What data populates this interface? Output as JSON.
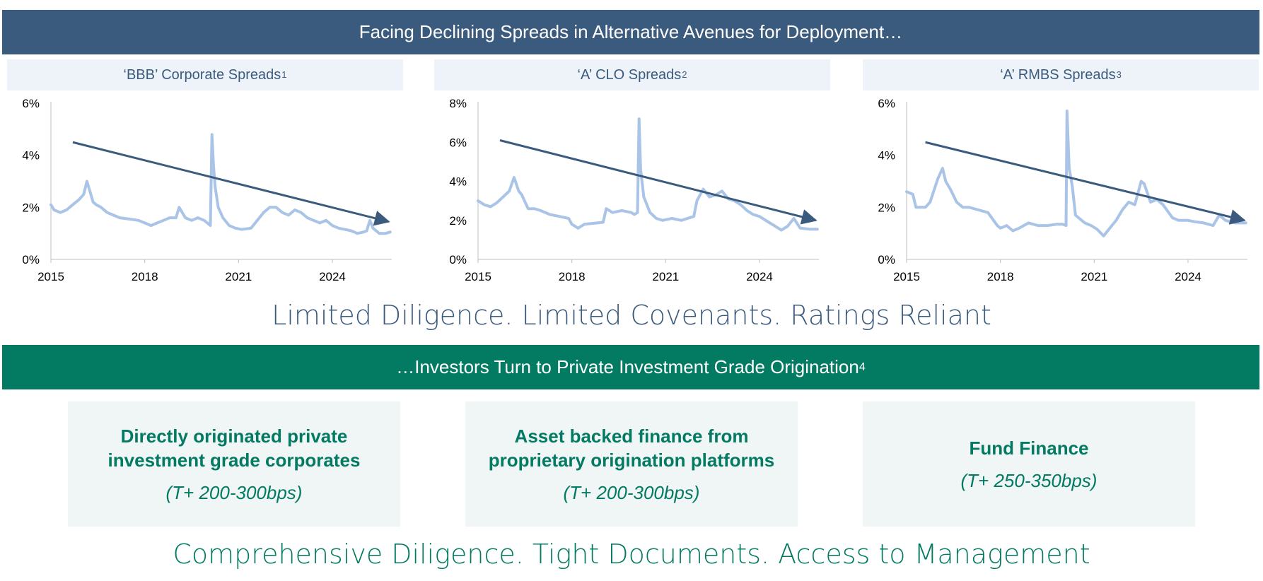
{
  "top_banner": "Facing Declining Spreads in Alternative Avenues for Deployment…",
  "tagline_top": "Limited Diligence. Limited Covenants. Ratings Reliant",
  "mid_banner": {
    "text": "…Investors Turn to Private Investment Grade Origination",
    "footnote": "4"
  },
  "cards": [
    {
      "heading": "Directly originated private investment grade corporates",
      "spread": "(T+ 200-300bps)"
    },
    {
      "heading": "Asset backed finance from proprietary origination platforms",
      "spread": "(T+ 200-300bps)"
    },
    {
      "heading": "Fund Finance",
      "spread": "(T+ 250-350bps)"
    }
  ],
  "tagline_bottom": "Comprehensive Diligence. Tight Documents. Access to Management",
  "colors": {
    "navy": "#3b5b7e",
    "green": "#037a62",
    "series": "#a9c4e6",
    "title_bg": "#eef3fa",
    "card_bg": "#f0f5f5"
  },
  "chart_data": [
    {
      "type": "line",
      "title": "‘BBB’ Corporate Spreads",
      "footnote": "1",
      "xlabel": "",
      "ylabel": "",
      "xlim": [
        2015,
        2025.9
      ],
      "ylim": [
        0,
        6
      ],
      "xticks": [
        2015,
        2018,
        2021,
        2024
      ],
      "xtick_labels": [
        "2015",
        "2018",
        "2021",
        "2024"
      ],
      "yticks": [
        0,
        2,
        4,
        6
      ],
      "ytick_labels": [
        "0%",
        "2%",
        "4%",
        "6%"
      ],
      "trend": {
        "from": [
          2015.7,
          4.5
        ],
        "to": [
          2025.8,
          1.45
        ]
      },
      "series": [
        {
          "name": "‘BBB’ Corporate Spread",
          "x": [
            2015.0,
            2015.1,
            2015.3,
            2015.5,
            2015.7,
            2015.9,
            2016.05,
            2016.15,
            2016.25,
            2016.35,
            2016.45,
            2016.6,
            2016.8,
            2017.0,
            2017.2,
            2017.5,
            2017.8,
            2018.0,
            2018.2,
            2018.4,
            2018.6,
            2018.8,
            2019.0,
            2019.1,
            2019.3,
            2019.5,
            2019.7,
            2019.9,
            2020.0,
            2020.1,
            2020.15,
            2020.2,
            2020.25,
            2020.35,
            2020.5,
            2020.7,
            2020.9,
            2021.1,
            2021.4,
            2021.6,
            2021.8,
            2022.0,
            2022.2,
            2022.4,
            2022.6,
            2022.8,
            2023.0,
            2023.2,
            2023.4,
            2023.6,
            2023.8,
            2024.0,
            2024.2,
            2024.4,
            2024.6,
            2024.8,
            2025.0,
            2025.1,
            2025.2,
            2025.3,
            2025.5,
            2025.7,
            2025.85
          ],
          "values": [
            2.1,
            1.9,
            1.8,
            1.9,
            2.1,
            2.3,
            2.5,
            3.0,
            2.6,
            2.2,
            2.1,
            2.0,
            1.8,
            1.7,
            1.6,
            1.55,
            1.5,
            1.4,
            1.3,
            1.4,
            1.5,
            1.6,
            1.6,
            2.0,
            1.6,
            1.5,
            1.6,
            1.5,
            1.4,
            1.3,
            4.8,
            3.6,
            2.8,
            2.0,
            1.6,
            1.3,
            1.2,
            1.15,
            1.2,
            1.5,
            1.8,
            2.0,
            2.0,
            1.8,
            1.7,
            1.9,
            1.8,
            1.6,
            1.5,
            1.4,
            1.5,
            1.3,
            1.2,
            1.15,
            1.1,
            1.0,
            1.05,
            1.1,
            1.5,
            1.2,
            1.0,
            1.0,
            1.05
          ]
        }
      ]
    },
    {
      "type": "line",
      "title": "‘A’ CLO Spreads",
      "footnote": "2",
      "xlabel": "",
      "ylabel": "",
      "xlim": [
        2015,
        2025.9
      ],
      "ylim": [
        0,
        8
      ],
      "xticks": [
        2015,
        2018,
        2021,
        2024
      ],
      "xtick_labels": [
        "2015",
        "2018",
        "2021",
        "2024"
      ],
      "yticks": [
        0,
        2,
        4,
        6,
        8
      ],
      "ytick_labels": [
        "0%",
        "2%",
        "4%",
        "6%",
        "8%"
      ],
      "trend": {
        "from": [
          2015.7,
          6.1
        ],
        "to": [
          2025.8,
          2.0
        ]
      },
      "series": [
        {
          "name": "‘A’ CLO Spread",
          "x": [
            2015.0,
            2015.2,
            2015.4,
            2015.6,
            2015.8,
            2016.0,
            2016.15,
            2016.3,
            2016.4,
            2016.6,
            2016.8,
            2017.0,
            2017.3,
            2017.6,
            2017.9,
            2018.0,
            2018.2,
            2018.4,
            2018.7,
            2019.0,
            2019.1,
            2019.3,
            2019.6,
            2019.9,
            2020.0,
            2020.1,
            2020.15,
            2020.2,
            2020.3,
            2020.5,
            2020.7,
            2020.9,
            2021.2,
            2021.5,
            2021.9,
            2022.0,
            2022.2,
            2022.4,
            2022.6,
            2022.8,
            2023.0,
            2023.2,
            2023.4,
            2023.6,
            2023.8,
            2024.0,
            2024.3,
            2024.5,
            2024.7,
            2024.9,
            2025.1,
            2025.3,
            2025.6,
            2025.85
          ],
          "values": [
            3.0,
            2.8,
            2.7,
            2.9,
            3.2,
            3.5,
            4.2,
            3.5,
            3.3,
            2.6,
            2.6,
            2.5,
            2.3,
            2.2,
            2.1,
            1.8,
            1.6,
            1.8,
            1.85,
            1.9,
            2.6,
            2.4,
            2.5,
            2.4,
            2.3,
            2.4,
            7.2,
            4.6,
            3.2,
            2.4,
            2.1,
            2.0,
            2.1,
            2.0,
            2.2,
            3.0,
            3.6,
            3.2,
            3.3,
            3.5,
            3.1,
            3.0,
            2.8,
            2.5,
            2.3,
            2.2,
            1.9,
            1.7,
            1.5,
            1.7,
            2.1,
            1.6,
            1.55,
            1.55
          ]
        }
      ]
    },
    {
      "type": "line",
      "title": "‘A’ RMBS Spreads",
      "footnote": "3",
      "xlabel": "",
      "ylabel": "",
      "xlim": [
        2015,
        2025.9
      ],
      "ylim": [
        0,
        6
      ],
      "xticks": [
        2015,
        2018,
        2021,
        2024
      ],
      "xtick_labels": [
        "2015",
        "2018",
        "2021",
        "2024"
      ],
      "yticks": [
        0,
        2,
        4,
        6
      ],
      "ytick_labels": [
        "0%",
        "2%",
        "4%",
        "6%"
      ],
      "trend": {
        "from": [
          2015.6,
          4.5
        ],
        "to": [
          2025.8,
          1.5
        ]
      },
      "series": [
        {
          "name": "‘A’ RMBS Spread",
          "x": [
            2015.0,
            2015.2,
            2015.3,
            2015.6,
            2015.75,
            2016.0,
            2016.15,
            2016.25,
            2016.4,
            2016.6,
            2016.8,
            2017.0,
            2017.3,
            2017.6,
            2017.9,
            2018.0,
            2018.2,
            2018.4,
            2018.6,
            2018.9,
            2019.2,
            2019.5,
            2019.8,
            2020.0,
            2020.1,
            2020.13,
            2020.2,
            2020.3,
            2020.4,
            2020.5,
            2020.7,
            2020.9,
            2021.1,
            2021.3,
            2021.5,
            2021.7,
            2021.9,
            2022.1,
            2022.3,
            2022.5,
            2022.6,
            2022.8,
            2023.0,
            2023.2,
            2023.5,
            2023.7,
            2024.0,
            2024.2,
            2024.5,
            2024.8,
            2025.0,
            2025.2,
            2025.5,
            2025.85
          ],
          "values": [
            2.6,
            2.5,
            2.0,
            2.0,
            2.2,
            3.1,
            3.5,
            3.0,
            2.7,
            2.2,
            2.0,
            2.0,
            1.9,
            1.8,
            1.3,
            1.2,
            1.3,
            1.1,
            1.2,
            1.4,
            1.3,
            1.3,
            1.35,
            1.35,
            1.3,
            5.7,
            3.5,
            2.8,
            1.7,
            1.6,
            1.4,
            1.3,
            1.15,
            0.9,
            1.2,
            1.5,
            1.9,
            2.2,
            2.1,
            3.0,
            2.9,
            2.2,
            2.3,
            2.1,
            1.6,
            1.5,
            1.5,
            1.45,
            1.4,
            1.3,
            1.7,
            1.5,
            1.4,
            1.4
          ]
        }
      ]
    }
  ]
}
